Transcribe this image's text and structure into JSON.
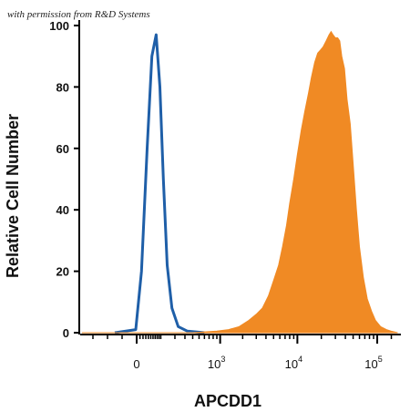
{
  "watermark": "with permission from R&D Systems",
  "chart_data": {
    "type": "area",
    "title": "",
    "xlabel": "APCDD1",
    "ylabel": "Relative Cell Number",
    "x_scale": "biexponential",
    "xlim": [
      -300,
      180000
    ],
    "ylim": [
      0,
      100
    ],
    "x_tick_labels": [
      {
        "value": 0,
        "base": "0",
        "exp": ""
      },
      {
        "value": 1000,
        "base": "10",
        "exp": "3"
      },
      {
        "value": 10000,
        "base": "10",
        "exp": "4"
      },
      {
        "value": 100000,
        "base": "10",
        "exp": "5"
      }
    ],
    "y_ticks": [
      0,
      20,
      40,
      60,
      80,
      100
    ],
    "series": [
      {
        "kind": "outline",
        "color": "#1f5fa8",
        "points": [
          [
            -120,
            0
          ],
          [
            -5,
            1
          ],
          [
            15,
            20
          ],
          [
            35,
            60
          ],
          [
            55,
            90
          ],
          [
            75,
            97
          ],
          [
            95,
            80
          ],
          [
            115,
            50
          ],
          [
            140,
            22
          ],
          [
            175,
            8
          ],
          [
            230,
            2
          ],
          [
            330,
            0.5
          ],
          [
            600,
            0
          ]
        ]
      },
      {
        "kind": "filled",
        "color": "#f08a24",
        "points": [
          [
            -300,
            0
          ],
          [
            400,
            0
          ],
          [
            900,
            0.5
          ],
          [
            1300,
            1
          ],
          [
            1800,
            2
          ],
          [
            2400,
            4
          ],
          [
            3000,
            6
          ],
          [
            3600,
            8
          ],
          [
            4300,
            12
          ],
          [
            5000,
            17
          ],
          [
            5800,
            22
          ],
          [
            6500,
            28
          ],
          [
            7300,
            35
          ],
          [
            8000,
            42
          ],
          [
            9000,
            50
          ],
          [
            10000,
            58
          ],
          [
            11200,
            66
          ],
          [
            12400,
            72
          ],
          [
            13800,
            78
          ],
          [
            15000,
            83
          ],
          [
            16500,
            88
          ],
          [
            18000,
            91
          ],
          [
            19500,
            92
          ],
          [
            21000,
            93
          ],
          [
            23000,
            95
          ],
          [
            25000,
            97
          ],
          [
            26500,
            98
          ],
          [
            28000,
            97
          ],
          [
            30000,
            96
          ],
          [
            32000,
            96
          ],
          [
            34000,
            95
          ],
          [
            36000,
            90
          ],
          [
            39000,
            86
          ],
          [
            42000,
            76
          ],
          [
            46000,
            68
          ],
          [
            50000,
            55
          ],
          [
            55000,
            40
          ],
          [
            60000,
            28
          ],
          [
            67000,
            18
          ],
          [
            75000,
            11
          ],
          [
            85000,
            7
          ],
          [
            95000,
            4
          ],
          [
            110000,
            2
          ],
          [
            130000,
            1
          ],
          [
            150000,
            0.5
          ],
          [
            180000,
            0
          ]
        ]
      }
    ]
  }
}
